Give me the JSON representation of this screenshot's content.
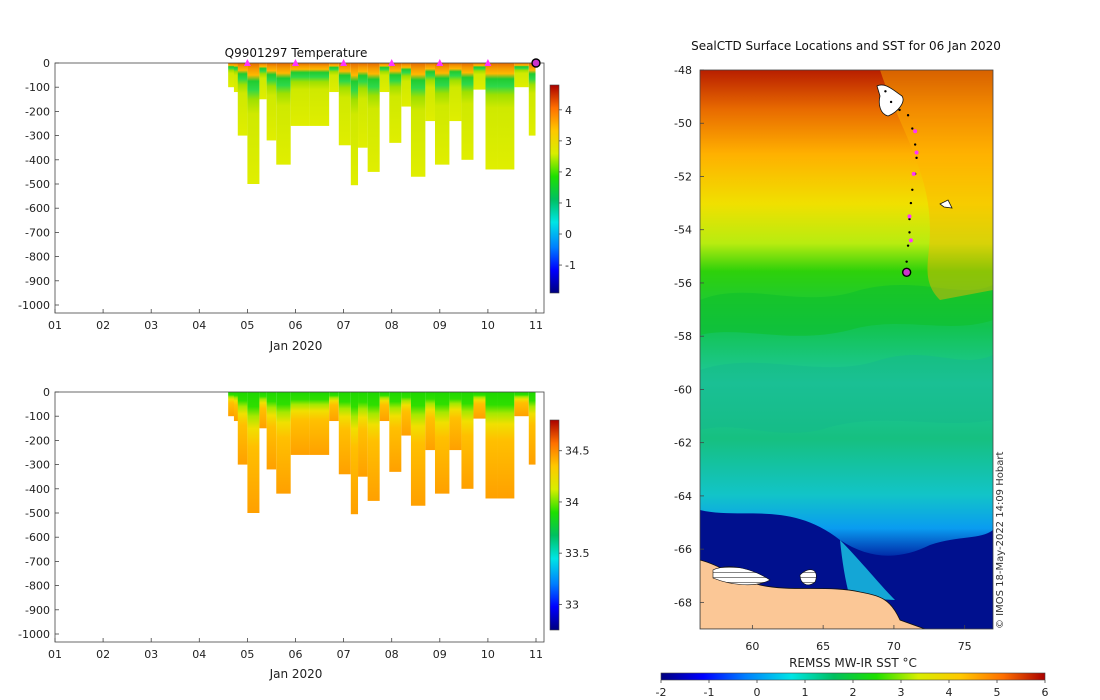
{
  "chart_data": [
    {
      "type": "heatmap",
      "title": "Q9901297  Temperature",
      "variable": "temperature",
      "xlabel": "Jan 2020",
      "xticks": [
        "01",
        "02",
        "03",
        "04",
        "05",
        "06",
        "07",
        "08",
        "09",
        "10",
        "11"
      ],
      "xlim": [
        1,
        11
      ],
      "ylim": [
        -1000,
        0
      ],
      "yticks": [
        "0",
        "-100",
        "-200",
        "-300",
        "-400",
        "-500",
        "-600",
        "-700",
        "-800",
        "-900",
        "-1000"
      ],
      "colorbar": {
        "min": -1.9,
        "max": 4.8,
        "ticks": [
          "-1",
          "0",
          "1",
          "2",
          "3",
          "4"
        ]
      },
      "markers_days": [
        5,
        6,
        7,
        8,
        9,
        10
      ],
      "current_day": 11,
      "profiles": [
        {
          "day": 4.6,
          "depth": 100
        },
        {
          "day": 4.72,
          "depth": 120
        },
        {
          "day": 4.8,
          "depth": 300
        },
        {
          "day": 5.0,
          "depth": 500
        },
        {
          "day": 5.25,
          "depth": 150
        },
        {
          "day": 5.4,
          "depth": 320
        },
        {
          "day": 5.6,
          "depth": 420
        },
        {
          "day": 5.9,
          "depth": 260
        },
        {
          "day": 6.3,
          "depth": 260
        },
        {
          "day": 6.7,
          "depth": 120
        },
        {
          "day": 6.9,
          "depth": 340
        },
        {
          "day": 7.15,
          "depth": 505
        },
        {
          "day": 7.3,
          "depth": 350
        },
        {
          "day": 7.5,
          "depth": 450
        },
        {
          "day": 7.75,
          "depth": 120
        },
        {
          "day": 7.95,
          "depth": 330
        },
        {
          "day": 8.2,
          "depth": 180
        },
        {
          "day": 8.4,
          "depth": 470
        },
        {
          "day": 8.7,
          "depth": 240
        },
        {
          "day": 8.9,
          "depth": 420
        },
        {
          "day": 9.2,
          "depth": 240
        },
        {
          "day": 9.45,
          "depth": 400
        },
        {
          "day": 9.7,
          "depth": 110
        },
        {
          "day": 9.95,
          "depth": 440
        },
        {
          "day": 10.2,
          "depth": 440
        },
        {
          "day": 10.55,
          "depth": 100
        },
        {
          "day": 10.85,
          "depth": 300
        }
      ]
    },
    {
      "type": "heatmap",
      "title": "",
      "variable": "salinity",
      "xlabel": "Jan 2020",
      "xticks": [
        "01",
        "02",
        "03",
        "04",
        "05",
        "06",
        "07",
        "08",
        "09",
        "10",
        "11"
      ],
      "xlim": [
        1,
        11
      ],
      "ylim": [
        -1000,
        0
      ],
      "yticks": [
        "0",
        "-100",
        "-200",
        "-300",
        "-400",
        "-500",
        "-600",
        "-700",
        "-800",
        "-900",
        "-1000"
      ],
      "colorbar": {
        "min": 32.75,
        "max": 34.8,
        "ticks": [
          "33",
          "33.5",
          "34",
          "34.5"
        ]
      }
    },
    {
      "type": "heatmap",
      "title": "SealCTD Surface Locations and SST for 06 Jan 2020",
      "xlabel": "",
      "ylabel": "",
      "xlim": [
        56.3,
        77
      ],
      "ylim": [
        -69,
        -48
      ],
      "xticks": [
        "60",
        "65",
        "70",
        "75"
      ],
      "yticks": [
        "-48",
        "-50",
        "-52",
        "-54",
        "-56",
        "-58",
        "-60",
        "-62",
        "-64",
        "-66",
        "-68"
      ],
      "colorbar": {
        "label": "REMSS MW-IR SST °C",
        "min": -2,
        "max": 6,
        "ticks": [
          "-2",
          "-1",
          "0",
          "1",
          "2",
          "3",
          "4",
          "5",
          "6"
        ]
      },
      "credit": "© IMOS 18-May-2022 14:09 Hobart",
      "track": [
        {
          "lon": 69.4,
          "lat": -48.8
        },
        {
          "lon": 69.8,
          "lat": -49.2
        },
        {
          "lon": 70.4,
          "lat": -49.5
        },
        {
          "lon": 71.0,
          "lat": -49.7
        },
        {
          "lon": 71.3,
          "lat": -50.2
        },
        {
          "lon": 71.5,
          "lat": -50.8
        },
        {
          "lon": 71.6,
          "lat": -51.3
        },
        {
          "lon": 71.5,
          "lat": -51.9
        },
        {
          "lon": 71.3,
          "lat": -52.5
        },
        {
          "lon": 71.2,
          "lat": -53.0
        },
        {
          "lon": 71.1,
          "lat": -53.6
        },
        {
          "lon": 71.1,
          "lat": -54.1
        },
        {
          "lon": 71.0,
          "lat": -54.6
        },
        {
          "lon": 70.9,
          "lat": -55.2
        },
        {
          "lon": 70.9,
          "lat": -55.6
        }
      ],
      "daily_positions": [
        {
          "lon": 71.5,
          "lat": -50.3
        },
        {
          "lon": 71.6,
          "lat": -51.1
        },
        {
          "lon": 71.4,
          "lat": -51.9
        },
        {
          "lon": 71.1,
          "lat": -53.5
        },
        {
          "lon": 71.2,
          "lat": -54.4
        }
      ],
      "current_position": {
        "lon": 70.9,
        "lat": -55.6
      }
    }
  ]
}
